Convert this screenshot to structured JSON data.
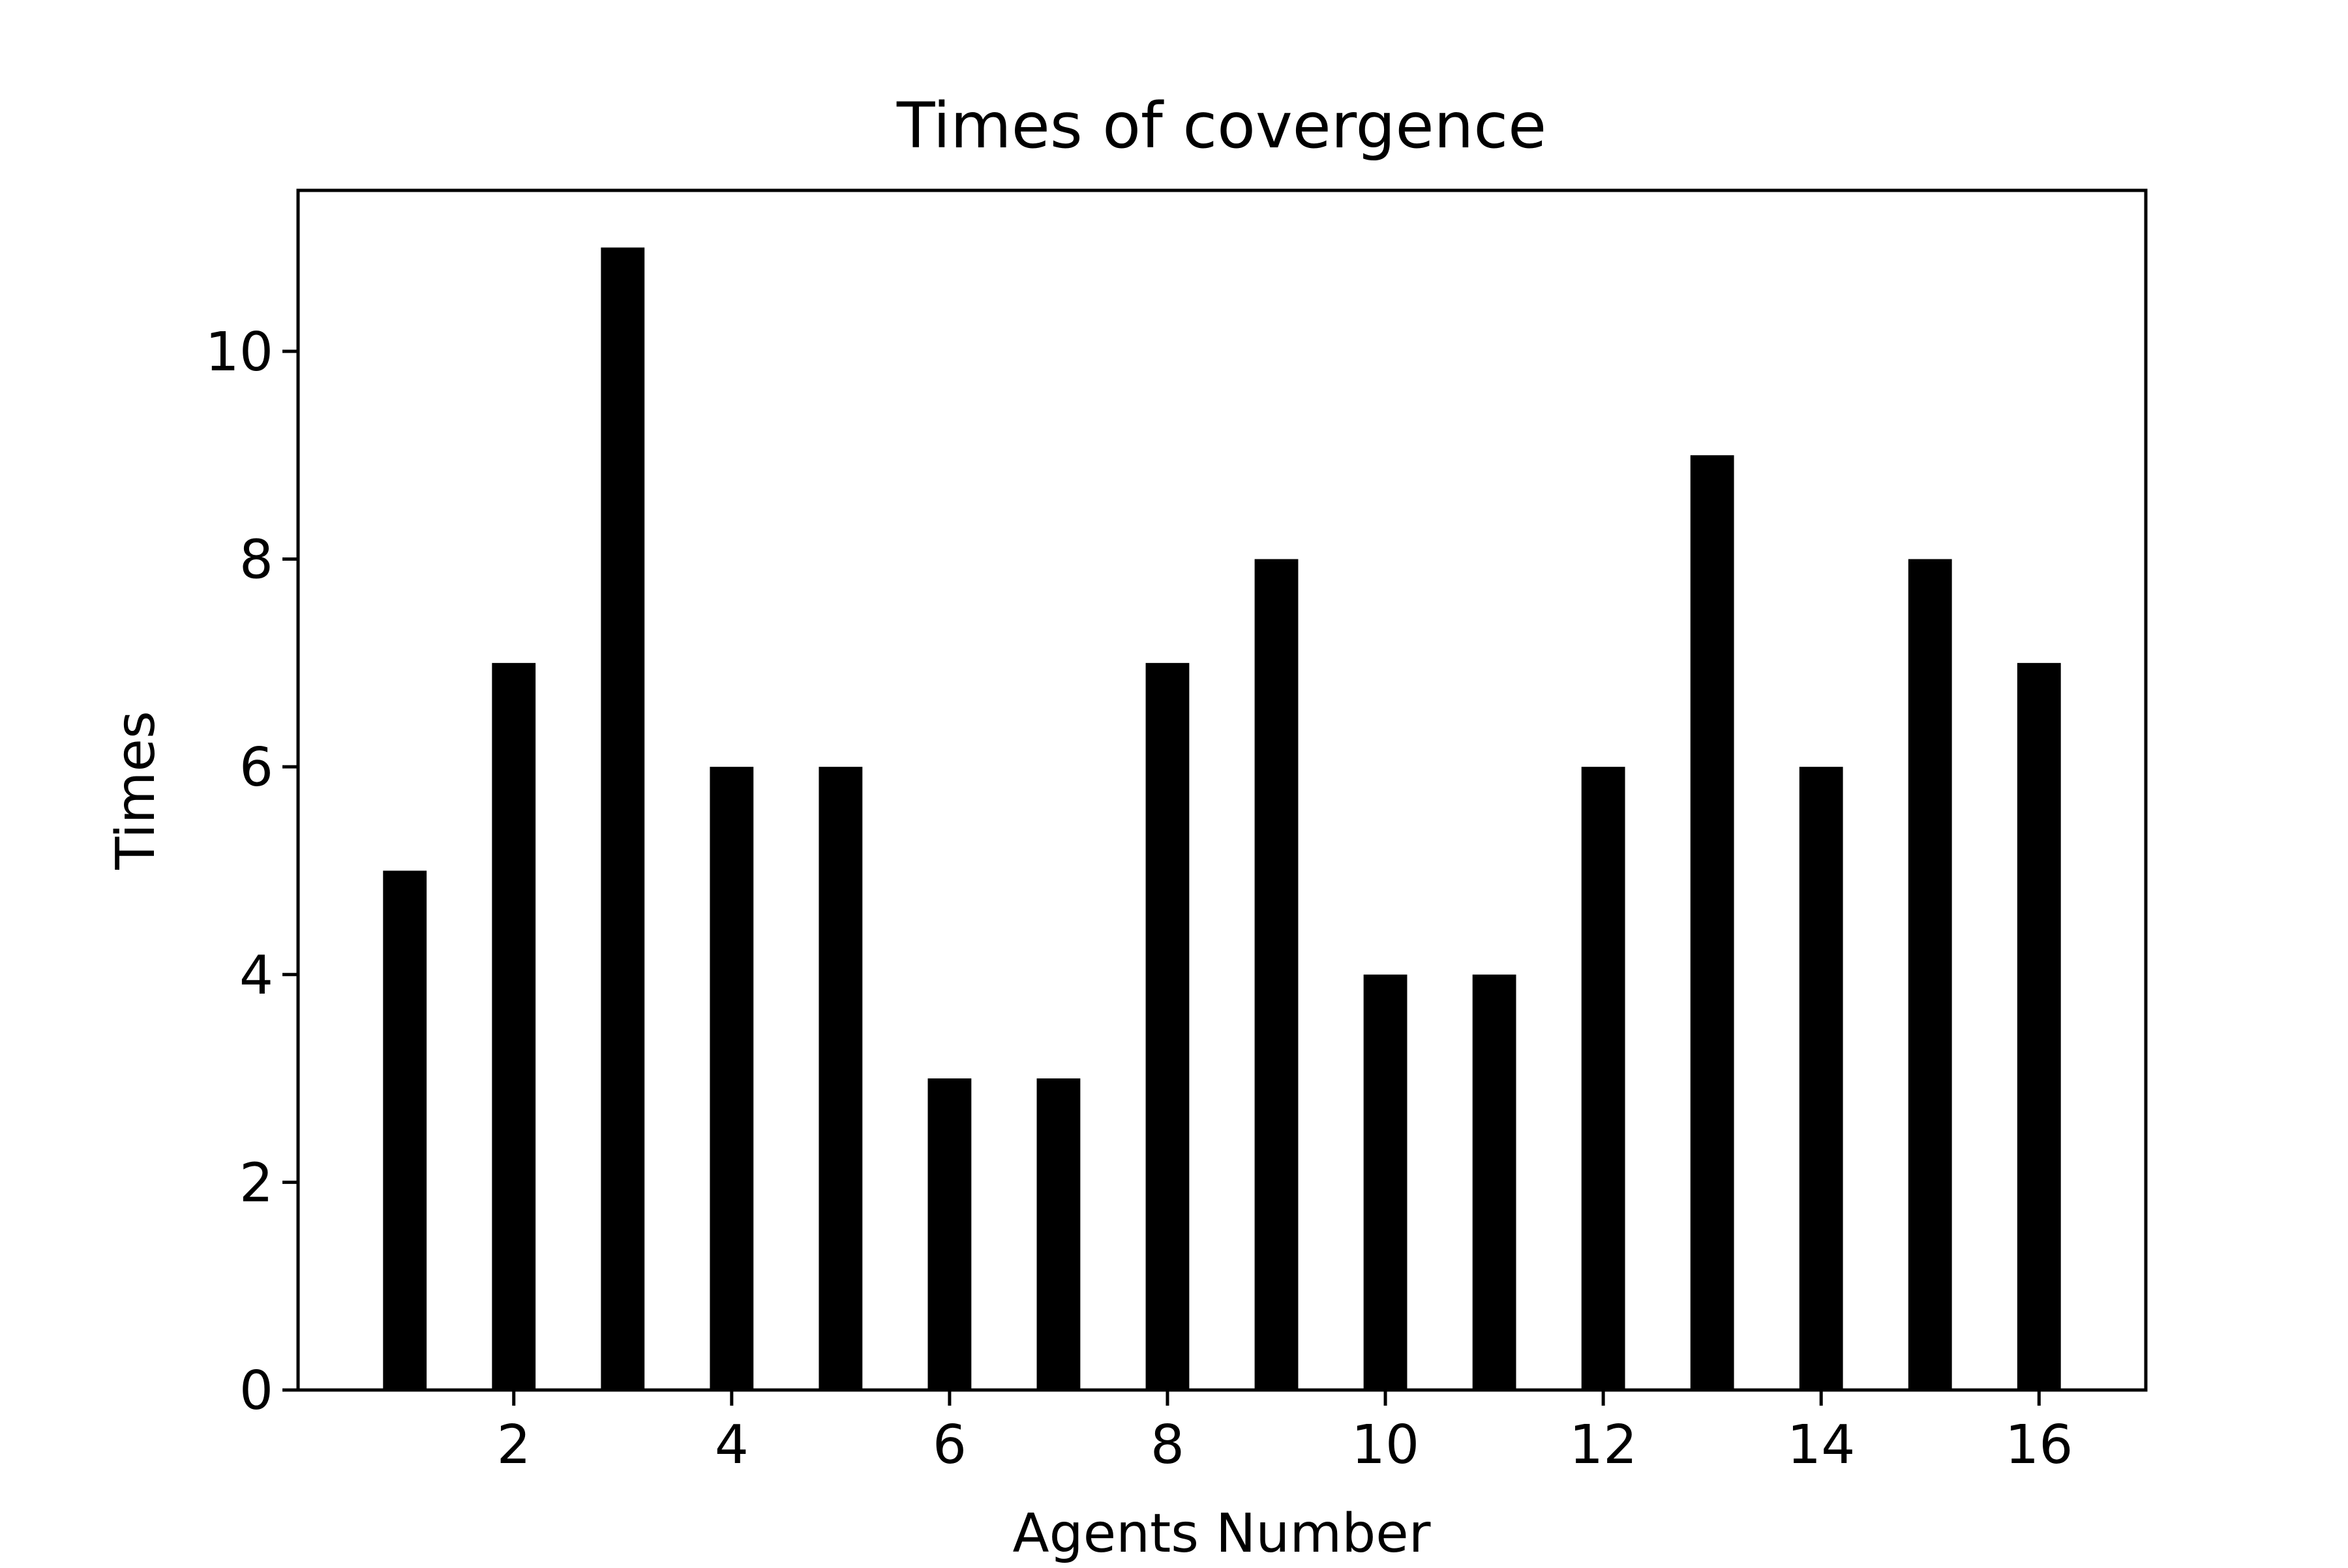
{
  "chart_data": {
    "type": "bar",
    "title": "Times of covergence",
    "xlabel": "Agents Number",
    "ylabel": "Times",
    "categories": [
      1,
      2,
      3,
      4,
      5,
      6,
      7,
      8,
      9,
      10,
      11,
      12,
      13,
      14,
      15,
      16
    ],
    "values": [
      5,
      7,
      11,
      6,
      6,
      3,
      3,
      7,
      8,
      4,
      4,
      6,
      9,
      6,
      8,
      7
    ],
    "xlim": [
      0.02,
      16.98
    ],
    "ylim": [
      0,
      11.55
    ],
    "x_ticks": [
      2,
      4,
      6,
      8,
      10,
      12,
      14,
      16
    ],
    "y_ticks": [
      0,
      2,
      4,
      6,
      8,
      10
    ],
    "bar_width": 0.4,
    "bar_color": "#000000",
    "grid": false,
    "legend": "none"
  }
}
